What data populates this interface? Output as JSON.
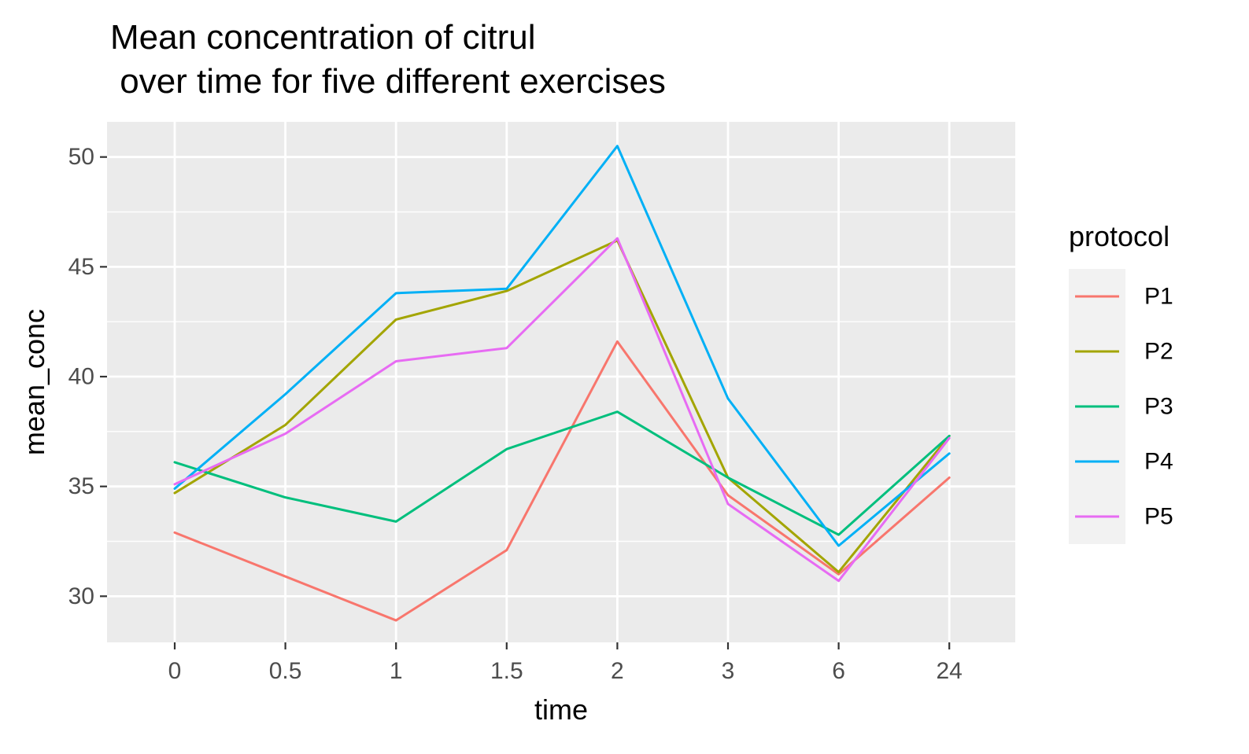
{
  "chart_data": {
    "type": "line",
    "title": "Mean concentration of citrul\n over time for five different exercises",
    "xlabel": "time",
    "ylabel": "mean_conc",
    "categories": [
      "0",
      "0.5",
      "1",
      "1.5",
      "2",
      "3",
      "6",
      "24"
    ],
    "x_scale": "discrete",
    "y_ticks": [
      30,
      35,
      40,
      45,
      50
    ],
    "ylim": [
      27.9,
      51.6
    ],
    "grid": true,
    "legend_title": "protocol",
    "legend_position": "right",
    "series": [
      {
        "name": "P1",
        "color": "#F8766D",
        "values": [
          32.9,
          30.9,
          28.9,
          32.1,
          41.6,
          34.6,
          31.0,
          35.4
        ]
      },
      {
        "name": "P2",
        "color": "#A3A500",
        "values": [
          34.7,
          37.8,
          42.6,
          43.9,
          46.2,
          35.4,
          31.1,
          37.3
        ]
      },
      {
        "name": "P3",
        "color": "#00BF7D",
        "values": [
          36.1,
          34.5,
          33.4,
          36.7,
          38.4,
          35.4,
          32.8,
          37.3
        ]
      },
      {
        "name": "P4",
        "color": "#00B0F6",
        "values": [
          34.9,
          39.2,
          43.8,
          44.0,
          50.5,
          39.0,
          32.3,
          36.5
        ]
      },
      {
        "name": "P5",
        "color": "#E76BF3",
        "values": [
          35.1,
          37.4,
          40.7,
          41.3,
          46.3,
          34.2,
          30.7,
          37.2
        ]
      }
    ]
  }
}
